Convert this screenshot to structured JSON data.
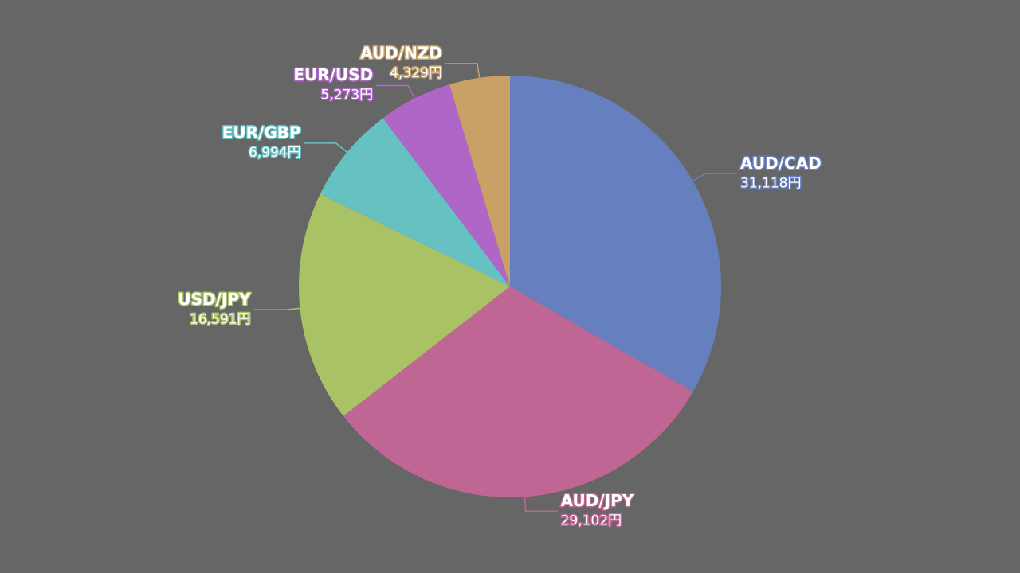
{
  "chart_data": {
    "type": "pie",
    "categories": [
      "AUD/CAD",
      "AUD/JPY",
      "USD/JPY",
      "EUR/GBP",
      "EUR/USD",
      "AUD/NZD"
    ],
    "values": [
      31118,
      29102,
      16591,
      6994,
      5273,
      4329
    ],
    "value_labels": [
      "31,118円",
      "29,102円",
      "16,591円",
      "6,994円",
      "5,273円",
      "4,329円"
    ],
    "colors": [
      "#6680bf",
      "#c06694",
      "#a9c266",
      "#66c2c2",
      "#b066c6",
      "#c9a066"
    ]
  }
}
